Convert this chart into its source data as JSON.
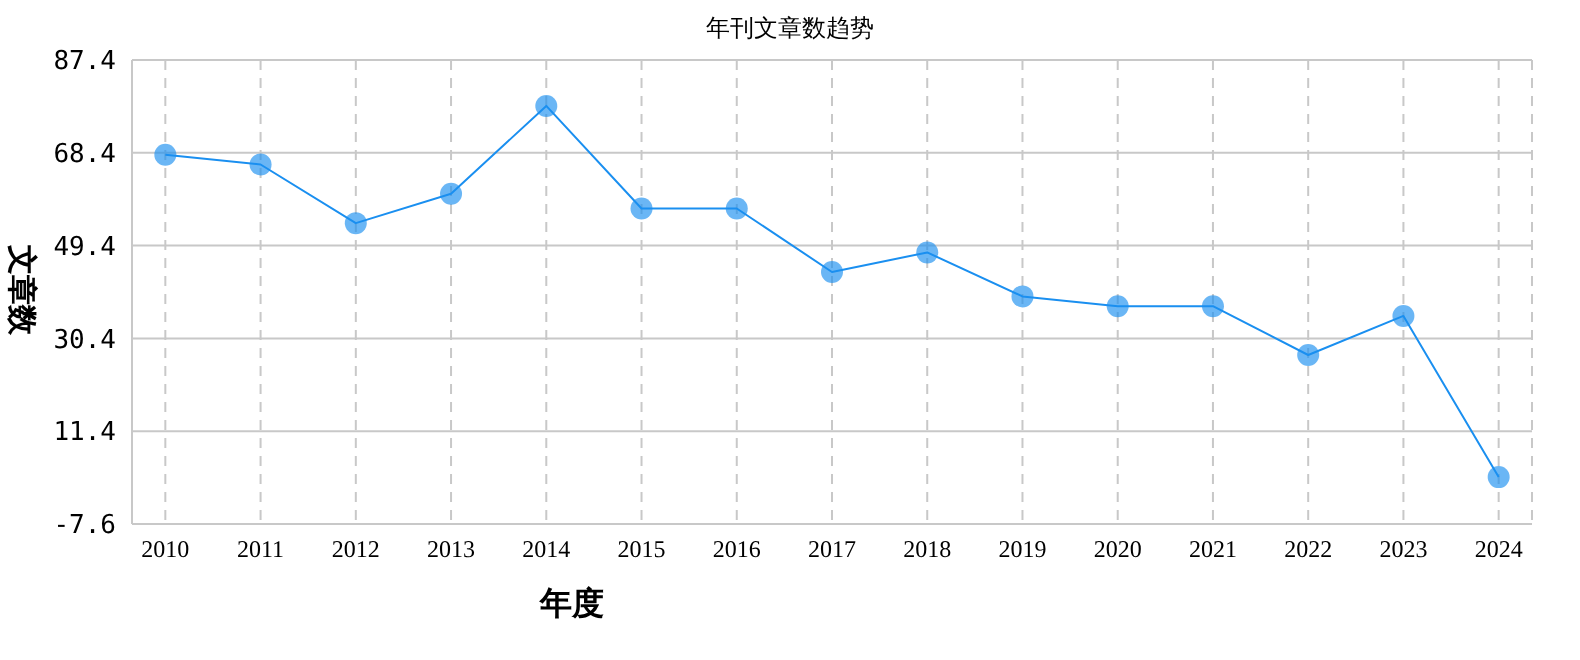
{
  "chart_data": {
    "type": "line",
    "title": "年刊文章数趋势",
    "xlabel": "年度",
    "ylabel": "文章数",
    "categories": [
      "2010",
      "2011",
      "2012",
      "2013",
      "2014",
      "2015",
      "2016",
      "2017",
      "2018",
      "2019",
      "2020",
      "2021",
      "2022",
      "2023",
      "2024"
    ],
    "series": [
      {
        "color": "#1a8ff0",
        "values": [
          68,
          66,
          54,
          60,
          78,
          57,
          57,
          44,
          48,
          39,
          37,
          37,
          27,
          35,
          2
        ]
      }
    ],
    "ylim": [
      -7.6,
      87.4
    ],
    "yticks": [
      -7.6,
      11.4,
      30.4,
      49.4,
      68.4,
      87.4
    ],
    "grid": true,
    "legend": false,
    "marker": "circle",
    "line_style": "solid"
  }
}
